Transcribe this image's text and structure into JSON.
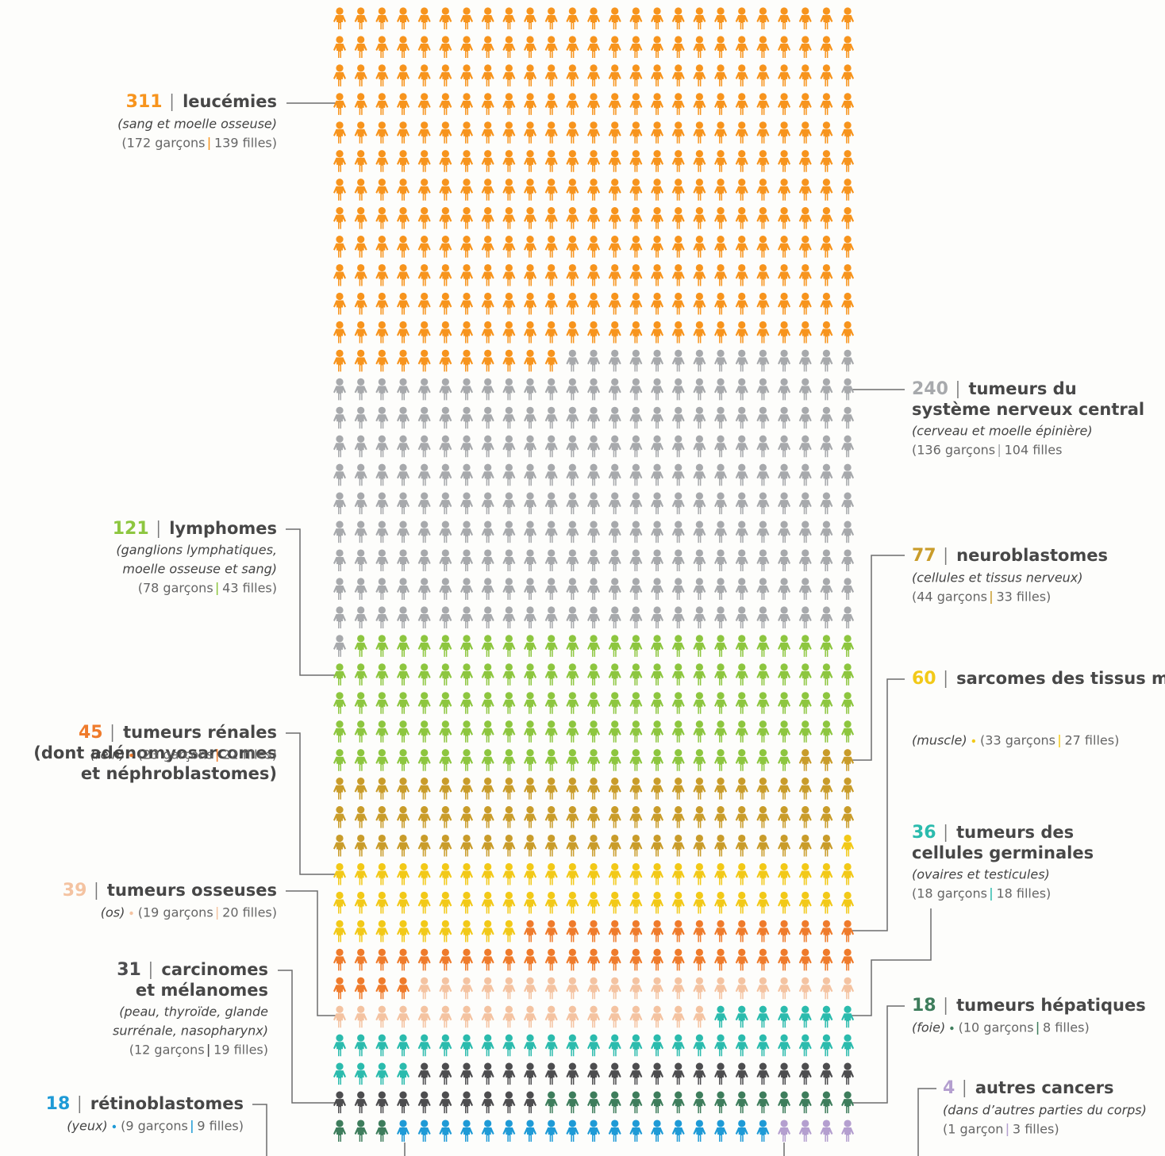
{
  "chart_data": {
    "type": "pictogram",
    "columns": 25,
    "series": [
      {
        "value": 311,
        "color": "#f7941d",
        "name": [
          "leucémies"
        ],
        "note": [
          "(sang et moelle osseuse)"
        ],
        "breakdown": [
          "(172 garçons",
          "139 filles)"
        ]
      },
      {
        "value": 240,
        "color": "#a7a9ac",
        "name": [
          "tumeurs du",
          "système nerveux central"
        ],
        "note": [
          "(cerveau et moelle épinière)"
        ],
        "breakdown": [
          "(136 garçons",
          "104 filles"
        ]
      },
      {
        "value": 121,
        "color": "#8dc63f",
        "name": [
          "lymphomes"
        ],
        "note": [
          "(ganglions lymphatiques,",
          "moelle osseuse et sang)"
        ],
        "breakdown": [
          "(78 garçons",
          "43 filles)"
        ]
      },
      {
        "value": 77,
        "color": "#c99c2a",
        "name": [
          "neuroblastomes"
        ],
        "note": [
          "(cellules et tissus nerveux)"
        ],
        "breakdown": [
          "(44 garçons",
          "33 filles)"
        ]
      },
      {
        "value": 60,
        "color": "#f2c918",
        "name": [
          "sarcomes des tissus mous"
        ],
        "note": [
          "(muscle)"
        ],
        "breakdown": [
          "(33 garçons",
          "27 filles)"
        ]
      },
      {
        "value": 45,
        "color": "#ef7b2b",
        "name": [
          "tumeurs rénales",
          "(dont adénomyosarcomes",
          "et néphroblastomes)"
        ],
        "note": [
          "(rein)"
        ],
        "breakdown": [
          "(23 garçons",
          "22 filles)"
        ]
      },
      {
        "value": 39,
        "color": "#f4c3a1",
        "name": [
          "tumeurs osseuses"
        ],
        "note": [
          "(os)"
        ],
        "breakdown": [
          "(19 garçons",
          "20 filles)"
        ]
      },
      {
        "value": 36,
        "color": "#2bbbad",
        "name": [
          "tumeurs des",
          "cellules germinales"
        ],
        "note": [
          "(ovaires et testicules)"
        ],
        "breakdown": [
          "(18 garçons",
          "18 filles)"
        ]
      },
      {
        "value": 31,
        "color": "#4d4d4f",
        "name": [
          "carcinomes",
          "et mélanomes"
        ],
        "note": [
          "(peau, thyroïde, glande",
          "surrénale, nasopharynx)"
        ],
        "breakdown": [
          "(12 garçons",
          "19 filles)"
        ]
      },
      {
        "value": 18,
        "color": "#3e7d5c",
        "name": [
          "tumeurs hépatiques"
        ],
        "note": [
          "(foie)"
        ],
        "breakdown": [
          "(10 garçons",
          "8 filles)"
        ]
      },
      {
        "value": 18,
        "color": "#1e9ad6",
        "name": [
          "rétinoblastomes"
        ],
        "note": [
          "(yeux)"
        ],
        "breakdown": [
          "(9 garçons",
          "9 filles)"
        ]
      },
      {
        "value": 4,
        "color": "#b49fcf",
        "name": [
          "autres cancers"
        ],
        "note": [
          "(dans d’autres parties du corps)"
        ],
        "breakdown": [
          "(1 garçon",
          "3 filles)"
        ]
      }
    ]
  }
}
